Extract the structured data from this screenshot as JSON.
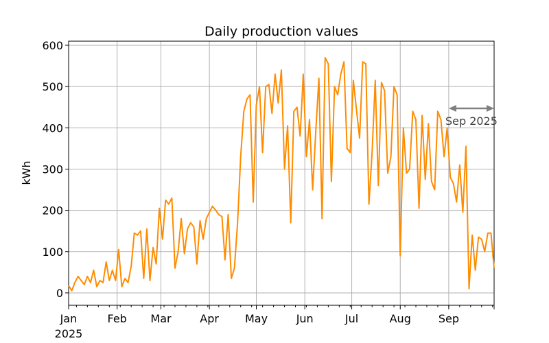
{
  "chart_data": {
    "type": "line",
    "title": "Daily production values",
    "xlabel": "",
    "ylabel": "kWh",
    "x_start": "2025-01-01",
    "x_end": "2025-09-30",
    "ylim": [
      -30,
      610
    ],
    "yticks": [
      0,
      100,
      200,
      300,
      400,
      500,
      600
    ],
    "xticks": [
      {
        "date": "2025-01-01",
        "label": "Jan"
      },
      {
        "date": "2025-02-01",
        "label": "Feb"
      },
      {
        "date": "2025-03-01",
        "label": "Mar"
      },
      {
        "date": "2025-04-01",
        "label": "Apr"
      },
      {
        "date": "2025-05-01",
        "label": "May"
      },
      {
        "date": "2025-06-01",
        "label": "Jun"
      },
      {
        "date": "2025-07-01",
        "label": "Jul"
      },
      {
        "date": "2025-08-01",
        "label": "Aug"
      },
      {
        "date": "2025-09-01",
        "label": "Sep"
      }
    ],
    "year_label": "2025",
    "grid": true,
    "series": [
      {
        "color": "#ff8c00",
        "x": [
          "2025-01-01",
          "2025-01-03",
          "2025-01-05",
          "2025-01-07",
          "2025-01-09",
          "2025-01-11",
          "2025-01-13",
          "2025-01-15",
          "2025-01-17",
          "2025-01-19",
          "2025-01-21",
          "2025-01-23",
          "2025-01-25",
          "2025-01-27",
          "2025-01-29",
          "2025-01-31",
          "2025-02-02",
          "2025-02-04",
          "2025-02-06",
          "2025-02-08",
          "2025-02-10",
          "2025-02-12",
          "2025-02-14",
          "2025-02-16",
          "2025-02-18",
          "2025-02-20",
          "2025-02-22",
          "2025-02-24",
          "2025-02-26",
          "2025-02-28",
          "2025-03-02",
          "2025-03-04",
          "2025-03-06",
          "2025-03-08",
          "2025-03-10",
          "2025-03-12",
          "2025-03-14",
          "2025-03-16",
          "2025-03-18",
          "2025-03-20",
          "2025-03-22",
          "2025-03-24",
          "2025-03-26",
          "2025-03-28",
          "2025-03-30",
          "2025-04-01",
          "2025-04-03",
          "2025-04-05",
          "2025-04-07",
          "2025-04-09",
          "2025-04-11",
          "2025-04-13",
          "2025-04-15",
          "2025-04-17",
          "2025-04-19",
          "2025-04-21",
          "2025-04-23",
          "2025-04-25",
          "2025-04-27",
          "2025-04-29",
          "2025-05-01",
          "2025-05-03",
          "2025-05-05",
          "2025-05-07",
          "2025-05-09",
          "2025-05-11",
          "2025-05-13",
          "2025-05-15",
          "2025-05-17",
          "2025-05-19",
          "2025-05-21",
          "2025-05-23",
          "2025-05-25",
          "2025-05-27",
          "2025-05-29",
          "2025-05-31",
          "2025-06-02",
          "2025-06-04",
          "2025-06-06",
          "2025-06-08",
          "2025-06-10",
          "2025-06-12",
          "2025-06-14",
          "2025-06-16",
          "2025-06-18",
          "2025-06-20",
          "2025-06-22",
          "2025-06-24",
          "2025-06-26",
          "2025-06-28",
          "2025-06-30",
          "2025-07-02",
          "2025-07-04",
          "2025-07-06",
          "2025-07-08",
          "2025-07-10",
          "2025-07-12",
          "2025-07-14",
          "2025-07-16",
          "2025-07-18",
          "2025-07-20",
          "2025-07-22",
          "2025-07-24",
          "2025-07-26",
          "2025-07-28",
          "2025-07-30",
          "2025-08-01",
          "2025-08-03",
          "2025-08-05",
          "2025-08-07",
          "2025-08-09",
          "2025-08-11",
          "2025-08-13",
          "2025-08-15",
          "2025-08-17",
          "2025-08-19",
          "2025-08-21",
          "2025-08-23",
          "2025-08-25",
          "2025-08-27",
          "2025-08-29",
          "2025-08-31",
          "2025-09-02",
          "2025-09-04",
          "2025-09-06",
          "2025-09-08",
          "2025-09-10",
          "2025-09-12",
          "2025-09-14",
          "2025-09-16",
          "2025-09-18",
          "2025-09-20",
          "2025-09-22",
          "2025-09-24",
          "2025-09-26",
          "2025-09-28",
          "2025-09-30"
        ],
        "y": [
          18,
          5,
          25,
          40,
          30,
          20,
          40,
          25,
          55,
          15,
          30,
          25,
          75,
          30,
          55,
          30,
          105,
          15,
          35,
          25,
          65,
          145,
          140,
          150,
          35,
          155,
          30,
          110,
          70,
          205,
          130,
          225,
          215,
          230,
          60,
          100,
          180,
          95,
          155,
          170,
          160,
          70,
          175,
          130,
          180,
          195,
          210,
          200,
          190,
          185,
          80,
          190,
          35,
          60,
          170,
          330,
          440,
          470,
          480,
          220,
          455,
          500,
          340,
          500,
          505,
          435,
          530,
          460,
          540,
          300,
          405,
          170,
          440,
          450,
          380,
          530,
          330,
          420,
          250,
          390,
          520,
          180,
          570,
          555,
          270,
          500,
          480,
          530,
          560,
          350,
          340,
          515,
          445,
          375,
          560,
          555,
          215,
          340,
          515,
          260,
          510,
          490,
          290,
          330,
          500,
          480,
          90,
          400,
          290,
          300,
          440,
          420,
          205,
          430,
          275,
          410,
          270,
          250,
          440,
          420,
          330,
          400,
          280,
          265,
          220,
          310,
          195,
          355,
          10,
          140,
          55,
          135,
          130,
          100,
          145,
          145,
          60
        ],
        "y_name": "kWh"
      }
    ],
    "annotation": {
      "text": "Sep 2025",
      "color": "#808080",
      "x_start": "2025-09-01",
      "x_end": "2025-09-30",
      "y": 447
    }
  }
}
